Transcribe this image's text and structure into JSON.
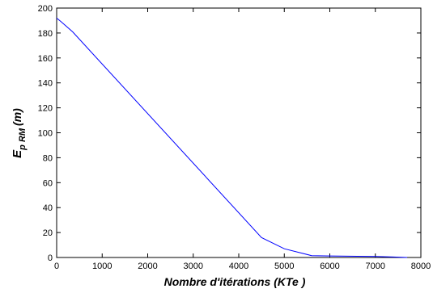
{
  "chart_data": {
    "type": "line",
    "title": "",
    "xlabel": "Nombre d'itérations (KTe )",
    "ylabel": {
      "main": "E",
      "sub": "p RM",
      "rest": "(m)"
    },
    "xlim": [
      0,
      8000
    ],
    "ylim": [
      0,
      200
    ],
    "xticks": [
      0,
      1000,
      2000,
      3000,
      4000,
      5000,
      6000,
      7000,
      8000
    ],
    "yticks": [
      0,
      20,
      40,
      60,
      80,
      100,
      120,
      140,
      160,
      180,
      200
    ],
    "grid": false,
    "line_color": "#0000ff",
    "series": [
      {
        "x": [
          0,
          100,
          350,
          4500,
          5000,
          5600,
          6000,
          7000,
          7400,
          7700
        ],
        "y": [
          192,
          189,
          181,
          16,
          7,
          1.5,
          1.2,
          0.8,
          0.4,
          0
        ]
      }
    ]
  }
}
